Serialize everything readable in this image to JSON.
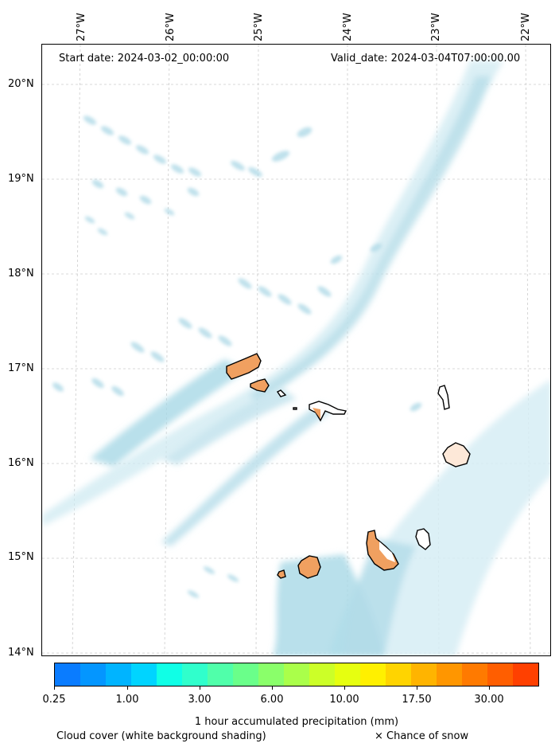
{
  "header": {
    "start_date": "Start date: 2024-03-02_00:00:00",
    "valid_date": "Valid_date: 2024-03-04T07:00:00.00"
  },
  "axes": {
    "lon_labels": [
      "27°W",
      "26°W",
      "25°W",
      "24°W",
      "23°W",
      "22°W"
    ],
    "lat_labels": [
      "20°N",
      "19°N",
      "18°N",
      "17°N",
      "16°N",
      "15°N",
      "14°N"
    ]
  },
  "map": {
    "grid": true,
    "cloud_color": "#a8d8e6",
    "precip_color": "#f0a060",
    "coast_color": "#000000",
    "islands": [
      "Santo Antão",
      "São Vicente",
      "Santa Luzia",
      "São Nicolau",
      "Sal",
      "Boa Vista",
      "Maio",
      "Santiago",
      "Fogo",
      "Brava"
    ]
  },
  "colorbar": {
    "title": "1 hour accumulated precipitation (mm)",
    "tick_labels": [
      "0.25",
      "1.00",
      "3.00",
      "6.00",
      "10.00",
      "17.50",
      "30.00"
    ],
    "colors": [
      "#0a7cff",
      "#0496ff",
      "#00b4ff",
      "#00d4ff",
      "#10ffe6",
      "#30ffcc",
      "#50ffaa",
      "#6aff8a",
      "#8aff6a",
      "#aaff4a",
      "#ccff28",
      "#e6ff10",
      "#fff000",
      "#ffd400",
      "#ffb400",
      "#ff9600",
      "#ff7a00",
      "#ff5e00",
      "#ff4000"
    ]
  },
  "footer": {
    "cloud_note": "Cloud cover (white background shading)",
    "snow_note": "× Chance of snow"
  }
}
